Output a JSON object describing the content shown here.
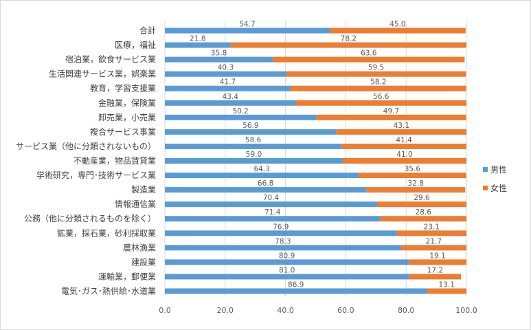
{
  "chart_data": {
    "type": "bar",
    "orientation": "horizontal",
    "stacked": true,
    "categories": [
      "合計",
      "医療，福祉",
      "宿泊業，飲食サービス業",
      "生活関連サービス業，娯楽業",
      "教育，学習支援業",
      "金融業，保険業",
      "卸売業，小売業",
      "複合サービス事業",
      "サービス業（他に分類されないもの）",
      "不動産業，物品賃貸業",
      "学術研究，専門･技術サービス業",
      "製造業",
      "情報通信業",
      "公務（他に分類されるものを除く）",
      "鉱業，採石業，砂利採取業",
      "農林漁業",
      "建設業",
      "運輸業，郵便業",
      "電気･ガス･熱供給･水道業"
    ],
    "series": [
      {
        "name": "男性",
        "color": "#5b9bd5",
        "values": [
          54.7,
          21.8,
          35.8,
          40.3,
          41.7,
          43.4,
          50.2,
          56.9,
          58.6,
          59.0,
          64.3,
          66.8,
          70.4,
          71.4,
          76.9,
          78.3,
          80.9,
          81.0,
          86.9
        ],
        "labels": [
          "54.7",
          "21.8",
          "35.8",
          "40.3",
          "41.7",
          "43.4",
          "50.2",
          "56.9",
          "58.6",
          "59.0",
          "64.3",
          "66.8",
          "70.4",
          "71.4",
          "76.9",
          "78.3",
          "80.9",
          "81.0",
          "86.9"
        ]
      },
      {
        "name": "女性",
        "color": "#ed7d31",
        "values": [
          45.0,
          78.2,
          63.6,
          59.5,
          58.2,
          56.6,
          49.7,
          43.1,
          41.4,
          41.0,
          35.6,
          32.8,
          29.6,
          28.6,
          23.1,
          21.7,
          19.1,
          17.2,
          13.1
        ],
        "labels": [
          "45.0",
          "78.2",
          "63.6",
          "59.5",
          "58.2",
          "56.6",
          "49.7",
          "43.1",
          "41.4",
          "41.0",
          "35.6",
          "32.8",
          "29.6",
          "28.6",
          "23.1",
          "21.7",
          "19.1",
          "17.2",
          "13.1"
        ]
      }
    ],
    "xlim": [
      0,
      100
    ],
    "xticks": [
      "0.0",
      "20.0",
      "40.0",
      "60.0",
      "80.0",
      "100.0"
    ],
    "grid": true,
    "legend_position": "right"
  }
}
